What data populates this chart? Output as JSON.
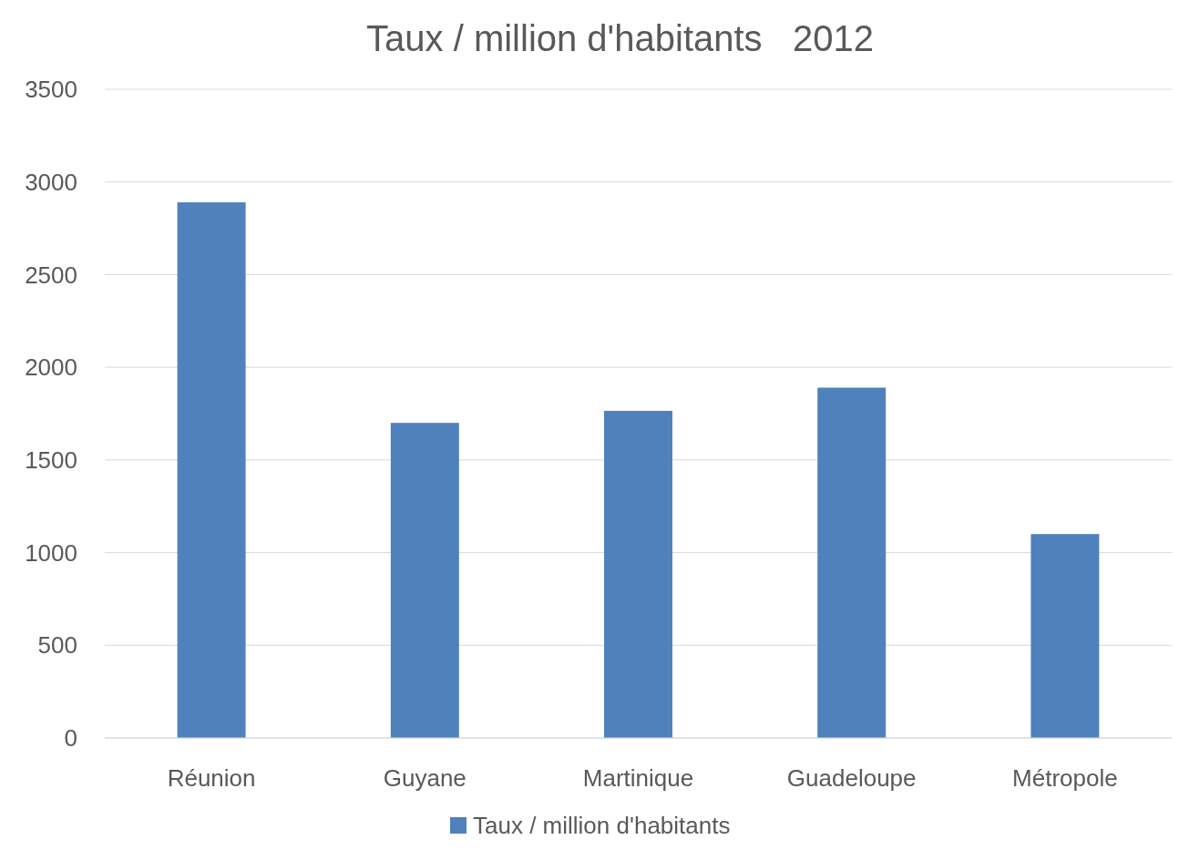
{
  "chart_data": {
    "type": "bar",
    "title": "Taux / million d'habitants   2012",
    "categories": [
      "Réunion",
      "Guyane",
      "Martinique",
      "Guadeloupe",
      "Métropole"
    ],
    "series": [
      {
        "name": "Taux / million d'habitants",
        "color": "#4f81bd",
        "values": [
          2890,
          1700,
          1765,
          1890,
          1100
        ]
      }
    ],
    "ylim": [
      0,
      3500
    ],
    "yticks": [
      0,
      500,
      1000,
      1500,
      2000,
      2500,
      3000,
      3500
    ],
    "grid": "y",
    "legend": "bottom"
  }
}
